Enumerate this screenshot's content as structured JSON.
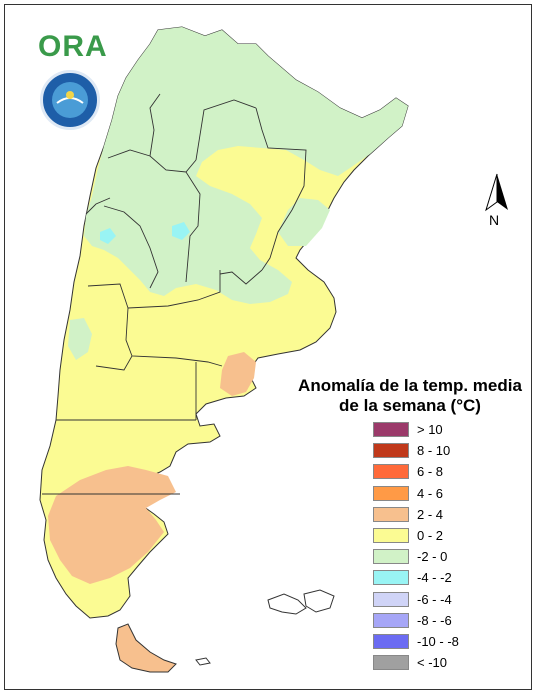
{
  "logo": {
    "text": "ORA"
  },
  "seal": {
    "name": "official-seal"
  },
  "north_arrow": {
    "label": "N",
    "icon": "north-arrow-icon"
  },
  "legend": {
    "title_line1": "Anomalía de la temp. media",
    "title_line2": "de la semana (°C)",
    "items": [
      {
        "label": "> 10",
        "color": "#9b3a6a"
      },
      {
        "label": "8 - 10",
        "color": "#c0391b"
      },
      {
        "label": "6 - 8",
        "color": "#ff6a3a"
      },
      {
        "label": "4 - 6",
        "color": "#ff9a46"
      },
      {
        "label": "2 - 4",
        "color": "#f7c08e"
      },
      {
        "label": "0 - 2",
        "color": "#fbfb93"
      },
      {
        "label": "-2 - 0",
        "color": "#d1f2c7"
      },
      {
        "label": "-4 - -2",
        "color": "#99f4f4"
      },
      {
        "label": "-6 - -4",
        "color": "#d0d4f7"
      },
      {
        "label": "-8 - -6",
        "color": "#a6a6f7"
      },
      {
        "label": "-10 - -8",
        "color": "#6b6bf2"
      },
      {
        "label": "< -10",
        "color": "#a0a0a0"
      }
    ]
  },
  "map_colors": {
    "green": "#d1f2c7",
    "yellow": "#fbfb93",
    "orange": "#f7c08e",
    "cyan": "#99f4f4",
    "border": "#333333"
  }
}
